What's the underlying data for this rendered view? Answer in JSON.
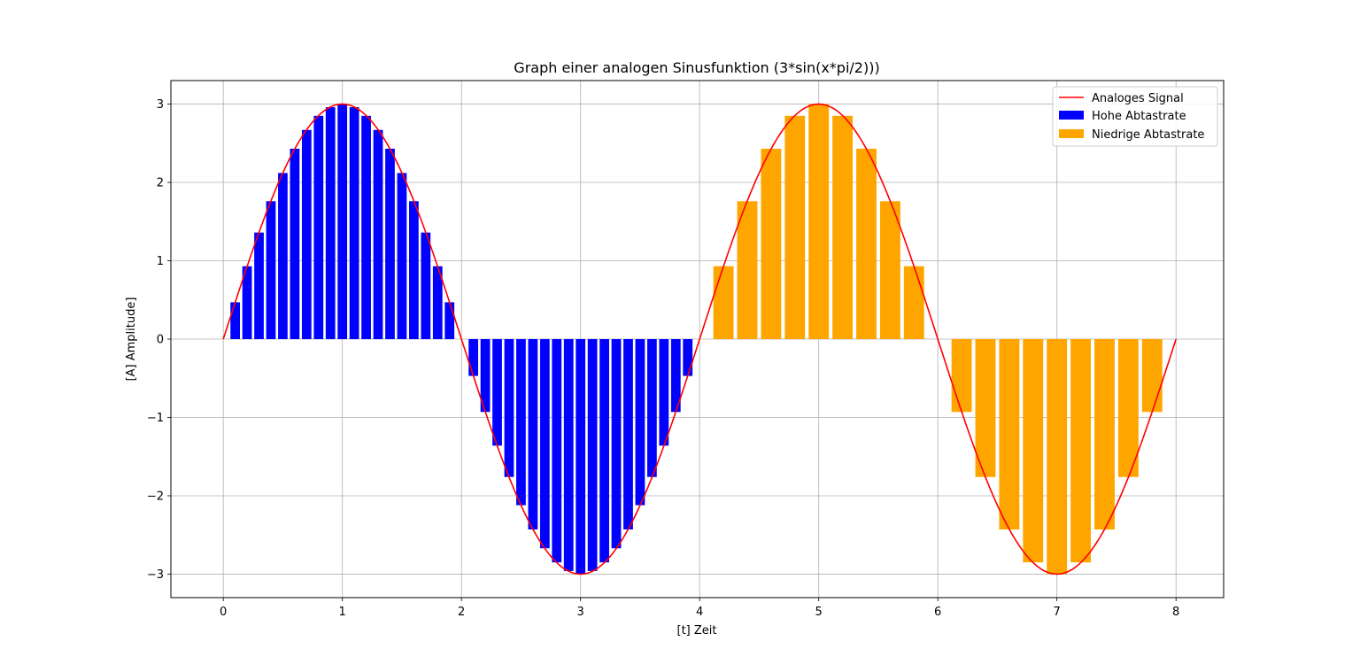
{
  "chart_data": {
    "type": "bar",
    "title": "Graph einer analogen Sinusfunktion (3*sin(x*pi/2)))",
    "xlabel": "[t] Zeit",
    "ylabel": "[A] Amplitude]",
    "xlim": [
      -0.44,
      8.4
    ],
    "ylim": [
      -3.3,
      3.3
    ],
    "xticks": [
      0,
      1,
      2,
      3,
      4,
      5,
      6,
      7,
      8
    ],
    "yticks": [
      -3,
      -2,
      -1,
      0,
      1,
      2,
      3
    ],
    "xtick_labels": [
      "0",
      "1",
      "2",
      "3",
      "4",
      "5",
      "6",
      "7",
      "8"
    ],
    "ytick_labels": [
      "−3",
      "−2",
      "−1",
      "0",
      "1",
      "2",
      "3"
    ],
    "grid": true,
    "legend_position": "top-right",
    "colors": {
      "analog": "#ff0000",
      "high": "#0000ff",
      "low": "#ffa500",
      "grid": "#b0b0b0"
    },
    "series": [
      {
        "name": "Analoges Signal",
        "kind": "line",
        "function": "3*sin(x*pi/2)",
        "x_range": [
          0,
          8
        ]
      },
      {
        "name": "Hohe Abtastrate",
        "kind": "bar",
        "bar_width": 0.08,
        "x": [
          0.1,
          0.2,
          0.3,
          0.4,
          0.5,
          0.6,
          0.7,
          0.8,
          0.9,
          1.0,
          1.1,
          1.2,
          1.3,
          1.4,
          1.5,
          1.6,
          1.7,
          1.8,
          1.9,
          2.0,
          2.1,
          2.2,
          2.3,
          2.4,
          2.5,
          2.6,
          2.7,
          2.8,
          2.9,
          3.0,
          3.1,
          3.2,
          3.3,
          3.4,
          3.5,
          3.6,
          3.7,
          3.8,
          3.9
        ],
        "values": [
          0.47,
          0.93,
          1.36,
          1.76,
          2.12,
          2.43,
          2.67,
          2.85,
          2.96,
          3.0,
          2.96,
          2.85,
          2.67,
          2.43,
          2.12,
          1.76,
          1.36,
          0.93,
          0.47,
          0.0,
          -0.47,
          -0.93,
          -1.36,
          -1.76,
          -2.12,
          -2.43,
          -2.67,
          -2.85,
          -2.96,
          -3.0,
          -2.96,
          -2.85,
          -2.67,
          -2.43,
          -2.12,
          -1.76,
          -1.36,
          -0.93,
          -0.47
        ]
      },
      {
        "name": "Niedrige Abtastrate",
        "kind": "bar",
        "bar_width": 0.17,
        "x": [
          4.2,
          4.4,
          4.6,
          4.8,
          5.0,
          5.2,
          5.4,
          5.6,
          5.8,
          6.0,
          6.2,
          6.4,
          6.6,
          6.8,
          7.0,
          7.2,
          7.4,
          7.6,
          7.8
        ],
        "values": [
          0.93,
          1.76,
          2.43,
          2.85,
          3.0,
          2.85,
          2.43,
          1.76,
          0.93,
          0.0,
          -0.93,
          -1.76,
          -2.43,
          -2.85,
          -3.0,
          -2.85,
          -2.43,
          -1.76,
          -0.93
        ]
      }
    ]
  }
}
